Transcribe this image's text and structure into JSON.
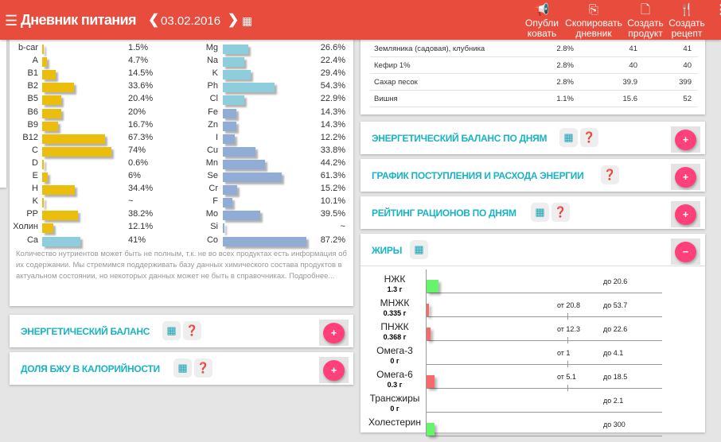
{
  "header": {
    "title": "Дневник питания",
    "date": "03.02.2016",
    "prev": "❮",
    "next": "❯",
    "calendar_icon": "calendar-icon",
    "actions": [
      {
        "icon": "📢",
        "label1": "Опубли",
        "label2": "ковать"
      },
      {
        "icon": "⎘",
        "label1": "Скопировать",
        "label2": "дневник"
      },
      {
        "icon": "🗋",
        "label1": "Создать",
        "label2": "продукт"
      },
      {
        "icon": "🍴",
        "label1": "Создать",
        "label2": "рецепт"
      }
    ],
    "more": "⋮"
  },
  "colors": {
    "vitamin": "#ebbe0b",
    "mineral_light": "#8ecddb",
    "mineral": "#91acd5",
    "green": "#66f46b",
    "red": "#f66a6a"
  },
  "nutrients_left": [
    {
      "n": "b-car",
      "v": 1.5,
      "t": "1.5%"
    },
    {
      "n": "A",
      "v": 4.7,
      "t": "4.7%"
    },
    {
      "n": "B1",
      "v": 14.5,
      "t": "14.5%"
    },
    {
      "n": "B2",
      "v": 33.6,
      "t": "33.6%"
    },
    {
      "n": "B5",
      "v": 20.4,
      "t": "20.4%"
    },
    {
      "n": "B6",
      "v": 20,
      "t": "20%"
    },
    {
      "n": "B9",
      "v": 16.7,
      "t": "16.7%"
    },
    {
      "n": "B12",
      "v": 67.3,
      "t": "67.3%"
    },
    {
      "n": "C",
      "v": 74,
      "t": "74%"
    },
    {
      "n": "D",
      "v": 0.6,
      "t": "0.6%"
    },
    {
      "n": "E",
      "v": 6,
      "t": "6%"
    },
    {
      "n": "H",
      "v": 34.4,
      "t": "34.4%"
    },
    {
      "n": "K",
      "v": 0.5,
      "t": "~"
    },
    {
      "n": "PP",
      "v": 38.2,
      "t": "38.2%"
    },
    {
      "n": "Холин",
      "v": 12.1,
      "t": "12.1%"
    },
    {
      "n": "Ca",
      "v": 41,
      "t": "41%",
      "c": "l"
    }
  ],
  "nutrients_right": [
    {
      "n": "Mg",
      "v": 26.6,
      "t": "26.6%",
      "c": "l"
    },
    {
      "n": "Na",
      "v": 22.4,
      "t": "22.4%",
      "c": "l"
    },
    {
      "n": "K",
      "v": 29.4,
      "t": "29.4%",
      "c": "l"
    },
    {
      "n": "Ph",
      "v": 54.3,
      "t": "54.3%",
      "c": "l"
    },
    {
      "n": "Cl",
      "v": 22.9,
      "t": "22.9%",
      "c": "l"
    },
    {
      "n": "Fe",
      "v": 14.3,
      "t": "14.3%"
    },
    {
      "n": "Zn",
      "v": 14.3,
      "t": "14.3%"
    },
    {
      "n": "I",
      "v": 12.2,
      "t": "12.2%"
    },
    {
      "n": "Cu",
      "v": 33.8,
      "t": "33.8%"
    },
    {
      "n": "Mn",
      "v": 44.2,
      "t": "44.2%"
    },
    {
      "n": "Se",
      "v": 61.3,
      "t": "61.3%"
    },
    {
      "n": "Cr",
      "v": 15.2,
      "t": "15.2%"
    },
    {
      "n": "F",
      "v": 10.1,
      "t": "10.1%"
    },
    {
      "n": "Mo",
      "v": 39.5,
      "t": "39.5%"
    },
    {
      "n": "Si",
      "v": 0.5,
      "t": "~"
    },
    {
      "n": "Co",
      "v": 87.2,
      "t": "87.2%"
    }
  ],
  "note": "Количество нутриентов может быть не полным, т.к. не во всех продуктах есть информация об их содержании. Мы стремимся поддерживать базу данных химического состава продуктов в актуальном состоянии, но некоторых данных может не быть в справочниках. Подробнее...",
  "products": [
    [
      "Земляника (садовая), клубника",
      "2.8%",
      "41",
      "41"
    ],
    [
      "Кефир 1%",
      "2.8%",
      "40",
      "40"
    ],
    [
      "Сахар песок",
      "2.8%",
      "39.9",
      "399"
    ],
    [
      "Вишня",
      "1.1%",
      "15.6",
      "52"
    ]
  ],
  "sections": {
    "energy_balance": "ЭНЕРГЕТИЧЕСКИЙ БАЛАНС",
    "bju_share": "ДОЛЯ БЖУ В КАЛОРИЙНОСТИ",
    "energy_by_days": "ЭНЕРГЕТИЧЕСКИЙ БАЛАНС ПО ДНЯМ",
    "energy_chart": "ГРАФИК ПОСТУПЛЕНИЯ И РАСХОДА ЭНЕРГИИ",
    "rating": "РЕЙТИНГ РАЦИОНОВ ПО ДНЯМ",
    "fats": "ЖИРЫ",
    "plus": "+",
    "minus": "−"
  },
  "fats": [
    {
      "name": "НЖК",
      "val": "1.3 г",
      "fill": 0.05,
      "color": "green",
      "from": "",
      "to": "до 20.6"
    },
    {
      "name": "МНЖК",
      "val": "0.335 г",
      "fill": 0.01,
      "color": "red",
      "from": "от 20.8",
      "to": "до 53.7"
    },
    {
      "name": "ПНЖК",
      "val": "0.368 г",
      "fill": 0.016,
      "color": "red",
      "from": "от 12.3",
      "to": "до 22.6"
    },
    {
      "name": "Омега-3",
      "val": "0 г",
      "fill": 0,
      "color": "red",
      "from": "от 1",
      "to": "до 4.1"
    },
    {
      "name": "Омега-6",
      "val": "0.3 г",
      "fill": 0.033,
      "color": "red",
      "from": "от 5.1",
      "to": "до 18.5"
    },
    {
      "name": "Трансжиры",
      "val": "0 г",
      "fill": 0,
      "color": "green",
      "from": "",
      "to": "до 2.1"
    },
    {
      "name": "Холестерин",
      "val": "",
      "fill": 0.033,
      "color": "green",
      "from": "",
      "to": "до 300"
    }
  ]
}
